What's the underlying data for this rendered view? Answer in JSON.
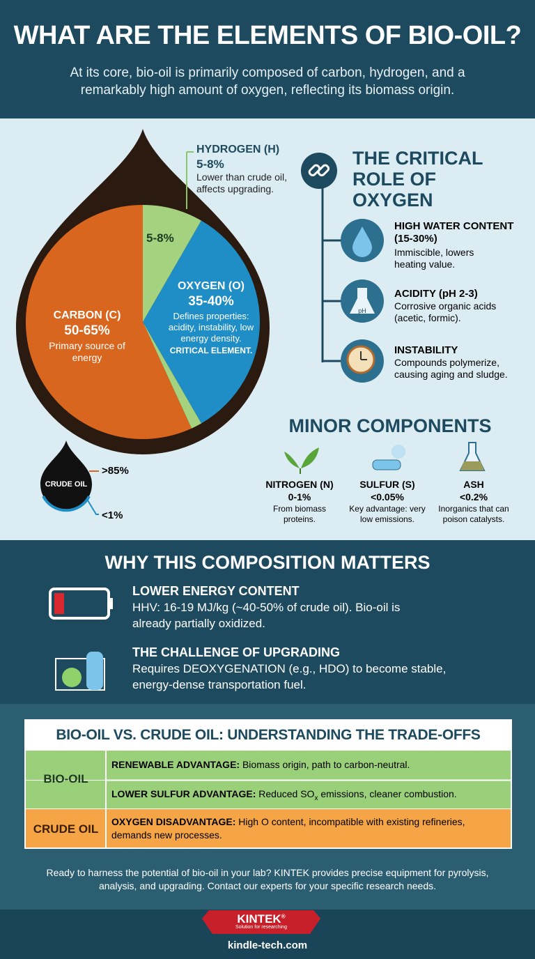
{
  "header": {
    "title": "WHAT ARE THE ELEMENTS OF BIO-OIL?",
    "subtitle": "At its core, bio-oil is primarily composed of carbon, hydrogen, and a remarkably high amount of oxygen, reflecting its biomass origin."
  },
  "composition": {
    "hydrogen": {
      "name": "HYDROGEN (H)",
      "range": "5-8%",
      "note": "Lower than crude oil, affects upgrading.",
      "slice_label": "5-8%"
    },
    "oxygen": {
      "name": "OXYGEN (O)",
      "range": "35-40%",
      "note": "Defines properties: acidity, instability, low energy density.",
      "emphasis": "CRITICAL ELEMENT."
    },
    "carbon": {
      "name": "CARBON (C)",
      "range": "50-65%",
      "note": "Primary source of energy"
    }
  },
  "crude_oil": {
    "label": "CRUDE OIL",
    "high": ">85%",
    "low": "<1%"
  },
  "oxygen_role": {
    "title": "THE CRITICAL ROLE OF OXYGEN",
    "items": [
      {
        "title": "HIGH WATER CONTENT (15-30%)",
        "text": "Immiscible, lowers heating value."
      },
      {
        "title": "ACIDITY (pH 2-3)",
        "text": "Corrosive organic acids (acetic, formic).",
        "icon_text": "pH"
      },
      {
        "title": "INSTABILITY",
        "text": "Compounds polymerize, causing aging and sludge."
      }
    ]
  },
  "minor": {
    "title": "MINOR COMPONENTS",
    "items": [
      {
        "name": "NITROGEN (N)",
        "value": "0-1%",
        "text": "From biomass proteins."
      },
      {
        "name": "SULFUR (S)",
        "value": "<0.05%",
        "text": "Key advantage: very low emissions."
      },
      {
        "name": "ASH",
        "value": "<0.2%",
        "text": "Inorganics that can poison catalysts."
      }
    ]
  },
  "why": {
    "title": "WHY THIS COMPOSITION MATTERS",
    "items": [
      {
        "title": "LOWER ENERGY CONTENT",
        "text": "HHV: 16-19 MJ/kg (~40-50% of crude oil). Bio-oil is already partially oxidized."
      },
      {
        "title": "THE CHALLENGE OF UPGRADING",
        "text": "Requires DEOXYGENATION (e.g., HDO) to become stable, energy-dense transportation fuel."
      }
    ]
  },
  "comparison": {
    "title": "BIO-OIL VS. CRUDE OIL: UNDERSTANDING THE TRADE-OFFS",
    "bio_label": "BIO-OIL",
    "crude_label": "CRUDE OIL",
    "rows": [
      {
        "label": "RENEWABLE ADVANTAGE:",
        "text": "Biomass origin, path to carbon-neutral."
      },
      {
        "label": "LOWER SULFUR ADVANTAGE:",
        "text_before": "Reduced SO",
        "sub": "x",
        "text_after": " emissions, cleaner combustion."
      },
      {
        "label": "OXYGEN DISADVANTAGE:",
        "text": "High O content, incompatible with existing refineries, demands new processes."
      }
    ]
  },
  "footer": {
    "cta": "Ready to harness the potential of bio-oil in your lab? KINTEK provides precise equipment for pyrolysis, analysis, and upgrading. Contact our experts for your specific research needs.",
    "brand": "KINTEK",
    "brand_mark": "®",
    "tagline": "Solution for researching",
    "url": "kindle-tech.com"
  }
}
